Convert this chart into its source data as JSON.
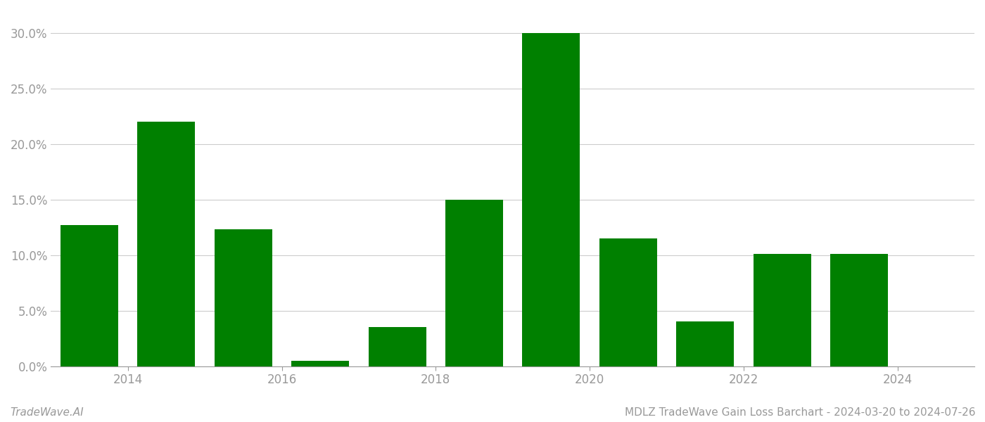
{
  "years": [
    2013,
    2014,
    2015,
    2016,
    2017,
    2018,
    2019,
    2020,
    2021,
    2022,
    2023
  ],
  "values": [
    0.127,
    0.22,
    0.123,
    0.005,
    0.035,
    0.15,
    0.3,
    0.115,
    0.04,
    0.101,
    0.101
  ],
  "bar_color": "#008000",
  "background_color": "#ffffff",
  "title": "MDLZ TradeWave Gain Loss Barchart - 2024-03-20 to 2024-07-26",
  "watermark": "TradeWave.AI",
  "ylim": [
    0,
    0.32
  ],
  "yticks": [
    0.0,
    0.05,
    0.1,
    0.15,
    0.2,
    0.25,
    0.3
  ],
  "xtick_labels": [
    "2014",
    "2016",
    "2018",
    "2020",
    "2022",
    "2024"
  ],
  "xtick_positions": [
    2013.5,
    2015.5,
    2017.5,
    2019.5,
    2021.5,
    2023.5
  ],
  "grid_color": "#cccccc",
  "tick_color": "#999999",
  "title_fontsize": 11,
  "watermark_fontsize": 11,
  "axis_label_fontsize": 12,
  "bar_width": 0.75,
  "xlim_left": 2012.5,
  "xlim_right": 2024.5
}
